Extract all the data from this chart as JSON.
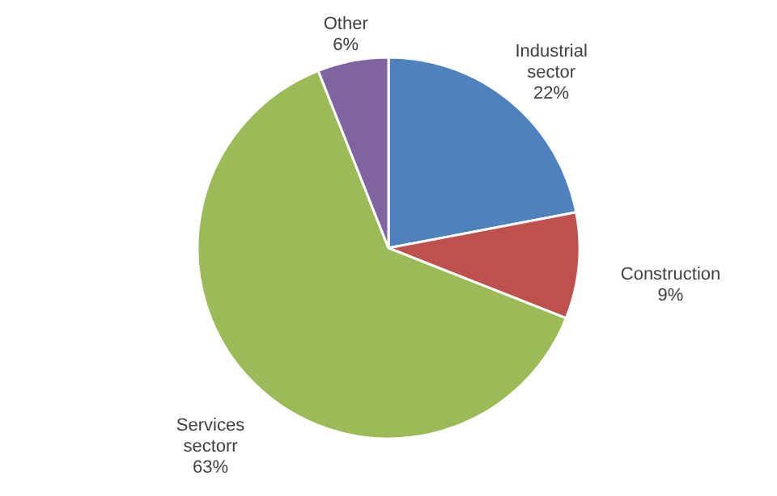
{
  "chart_data": {
    "type": "pie",
    "categories": [
      "Industrial sector",
      "Construction",
      "Services sectorr",
      "Other"
    ],
    "values": [
      22,
      9,
      63,
      6
    ],
    "value_labels": [
      "22%",
      "9%",
      "63%",
      "6%"
    ],
    "colors": [
      "#4f81bd",
      "#c0504d",
      "#9bbb59",
      "#8064a2"
    ]
  }
}
